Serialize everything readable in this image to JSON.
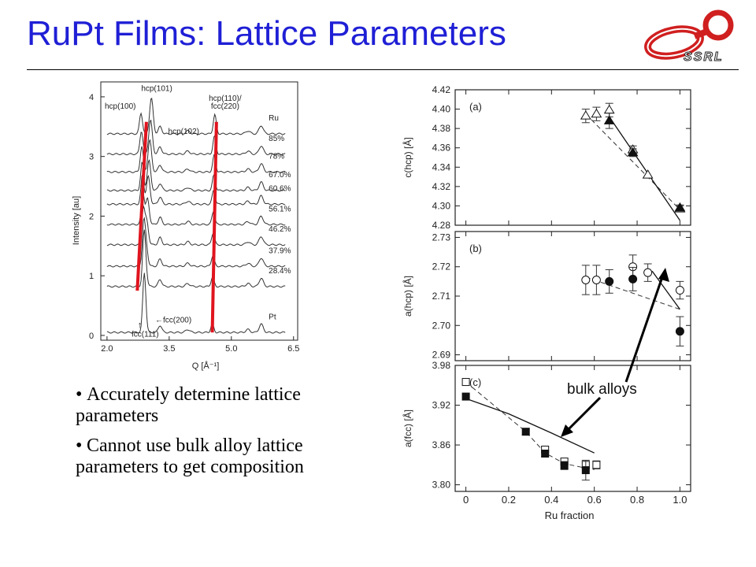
{
  "slide": {
    "title": "RuPt Films: Lattice Parameters",
    "logo_text": "SSRL",
    "bullets": [
      "Accurately determine lattice parameters",
      "Cannot use bulk alloy lattice parameters to get composition"
    ],
    "annotation": "bulk alloys"
  },
  "chart_data": [
    {
      "type": "line",
      "xlabel": "Q [Å⁻¹]",
      "ylabel": "Intensity [au]",
      "xlim": [
        1.85,
        6.6
      ],
      "ylim": [
        -0.08,
        4.25
      ],
      "xticks": [
        "2.0",
        "3.5",
        "5.0",
        "6.5"
      ],
      "xtick_values": [
        2.0,
        3.5,
        5.0,
        6.5
      ],
      "yticks": [
        "0",
        "1",
        "2",
        "3",
        "4"
      ],
      "yticks_values": [
        0,
        1,
        2,
        3,
        4
      ],
      "series": [
        {
          "name": "Ru",
          "offset": 3.38
        },
        {
          "name": "85%",
          "offset": 3.04
        },
        {
          "name": "78%",
          "offset": 2.74
        },
        {
          "name": "67.0%",
          "offset": 2.43
        },
        {
          "name": "60.6%",
          "offset": 2.2
        },
        {
          "name": "56.1%",
          "offset": 1.86
        },
        {
          "name": "46.2%",
          "offset": 1.52
        },
        {
          "name": "37.9%",
          "offset": 1.16
        },
        {
          "name": "28.4%",
          "offset": 0.82
        },
        {
          "name": "Pt",
          "offset": 0.05
        }
      ],
      "peak_labels": [
        {
          "text": "hcp(100)",
          "q": 2.32,
          "y": 3.8
        },
        {
          "text": "hcp(101)",
          "q": 3.2,
          "y": 4.1
        },
        {
          "text": "hcp(102)",
          "q": 3.85,
          "y": 3.38
        },
        {
          "text": "hcp(110)/",
          "q": 4.85,
          "y": 3.93
        },
        {
          "text": "fcc(220)",
          "q": 4.85,
          "y": 3.8
        },
        {
          "text": "←fcc(200)",
          "q": 3.6,
          "y": 0.22
        },
        {
          "text": "fcc(111)",
          "q": 2.92,
          "y": -0.02
        }
      ],
      "guide_lines": [
        {
          "q_top": 2.95,
          "y_top": 3.58,
          "q_bottom": 2.73,
          "y_bottom": 0.75
        },
        {
          "q_top": 4.64,
          "y_top": 3.58,
          "q_bottom": 4.54,
          "y_bottom": 0.05
        }
      ]
    },
    {
      "type": "scatter",
      "xlabel": "Ru fraction",
      "xlim": [
        -0.05,
        1.05
      ],
      "xticks": [
        "0",
        "0.2",
        "0.4",
        "0.6",
        "0.8",
        "1.0"
      ],
      "xtick_values": [
        0,
        0.2,
        0.4,
        0.6,
        0.8,
        1.0
      ],
      "panels": [
        {
          "label": "(a)",
          "ylabel": "c(hcp) [Å]",
          "ylim": [
            4.28,
            4.42
          ],
          "yticks": [
            "4.28",
            "4.30",
            "4.32",
            "4.34",
            "4.36",
            "4.38",
            "4.40",
            "4.42"
          ],
          "yticks_values": [
            4.28,
            4.3,
            4.32,
            4.34,
            4.36,
            4.38,
            4.4,
            4.42
          ],
          "series": [
            {
              "marker": "open-triangle",
              "x": [
                0.56,
                0.61,
                0.67,
                0.78,
                0.85,
                1.0
              ],
              "y": [
                4.393,
                4.395,
                4.399,
                4.358,
                4.332,
                4.297
              ],
              "err": [
                0.007,
                0.007,
                0.007,
                0.004,
                0,
                0.003
              ]
            },
            {
              "marker": "filled-triangle",
              "x": [
                0.67,
                0.78,
                1.0
              ],
              "y": [
                4.388,
                4.355,
                4.298
              ],
              "err": [
                0.008,
                0.004,
                0.003
              ]
            }
          ],
          "dashed_fit": {
            "x": [
              0.56,
              1.0
            ],
            "y": [
              4.395,
              4.296
            ]
          },
          "solid_line": {
            "x": [
              0.67,
              1.0
            ],
            "y": [
              4.392,
              4.285
            ]
          }
        },
        {
          "label": "(b)",
          "ylabel": "a(hcp) [Å]",
          "ylim": [
            2.688,
            2.732
          ],
          "yticks": [
            "2.69",
            "2.70",
            "2.71",
            "2.72",
            "2.73"
          ],
          "yticks_values": [
            2.69,
            2.7,
            2.71,
            2.72,
            2.73
          ],
          "series": [
            {
              "marker": "open-circle",
              "x": [
                0.56,
                0.61,
                0.78,
                0.85,
                1.0
              ],
              "y": [
                2.7155,
                2.7155,
                2.72,
                2.718,
                2.712
              ],
              "err": [
                0.005,
                0.005,
                0.004,
                0.003,
                0.003
              ]
            },
            {
              "marker": "filled-circle",
              "x": [
                0.67,
                0.78,
                1.0
              ],
              "y": [
                2.715,
                2.7158,
                2.698
              ],
              "err": [
                0.004,
                0.004,
                0.005
              ]
            }
          ],
          "dashed_fit": {
            "x": [
              0.56,
              1.0
            ],
            "y": [
              2.7165,
              2.7055
            ]
          },
          "solid_line": {
            "x": [
              0.87,
              1.0
            ],
            "y": [
              2.7185,
              2.7055
            ]
          }
        },
        {
          "label": "(c)",
          "ylabel": "a(fcc) [Å]",
          "ylim": [
            3.79,
            3.98
          ],
          "yticks": [
            "3.80",
            "3.86",
            "3.92",
            "3.98"
          ],
          "yticks_values": [
            3.8,
            3.86,
            3.92,
            3.98
          ],
          "series": [
            {
              "marker": "open-square",
              "x": [
                0,
                0.37,
                0.46,
                0.56,
                0.61
              ],
              "y": [
                3.955,
                3.853,
                3.835,
                3.83,
                3.83
              ],
              "err": [
                0,
                0.004,
                0.004,
                0.005,
                0.006
              ]
            },
            {
              "marker": "filled-square",
              "x": [
                0,
                0.28,
                0.37,
                0.46,
                0.56
              ],
              "y": [
                3.933,
                3.88,
                3.847,
                3.829,
                3.822
              ],
              "err": [
                0,
                0.005,
                0.005,
                0.006,
                0.015
              ]
            }
          ],
          "dashed_fit": {
            "x": [
              0,
              0.28,
              0.37,
              0.46,
              0.56,
              0.6
            ],
            "y": [
              3.955,
              3.88,
              3.848,
              3.832,
              3.825,
              3.823
            ]
          },
          "solid_line": {
            "x": [
              0,
              0.2,
              0.4,
              0.6
            ],
            "y": [
              3.93,
              3.907,
              3.878,
              3.848
            ]
          }
        }
      ]
    }
  ]
}
